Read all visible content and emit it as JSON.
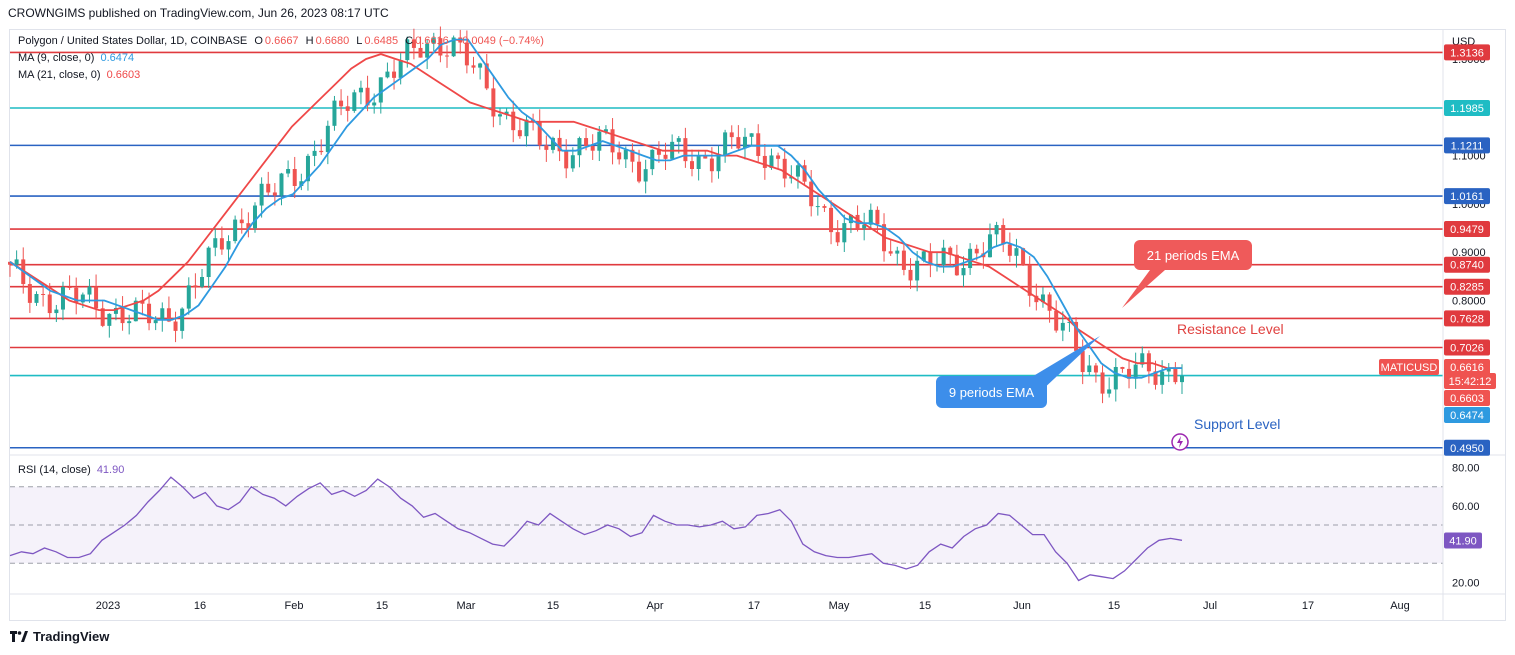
{
  "header": {
    "publisher_line": "CROWNGIMS published on TradingView.com, Jun 26, 2023 08:17 UTC"
  },
  "legend": {
    "symbol": "Polygon / United States Dollar, 1D, COINBASE",
    "open_label": "O",
    "open": "0.6667",
    "high_label": "H",
    "high": "0.6680",
    "low_label": "L",
    "low": "0.6485",
    "close_label": "C",
    "close": "0.6616",
    "change": "−0.0049 (−0.74%)",
    "ma9_label": "MA (9, close, 0)",
    "ma9_value": "0.6474",
    "ma21_label": "MA (21, close, 0)",
    "ma21_value": "0.6603",
    "rsi_label": "RSI (14, close)",
    "rsi_value": "41.90"
  },
  "annotations": {
    "ema21_callout": "21 periods EMA",
    "ema9_callout": "9 periods EMA",
    "resistance": "Resistance Level",
    "support": "Support Level"
  },
  "footer": {
    "brand": "TradingView"
  },
  "colors": {
    "up": "#26a69a",
    "down": "#ef5350",
    "ma9": "#2e9ae0",
    "ma21": "#ef4848",
    "red_line": "#e03a3e",
    "blue_line": "#2a63c2",
    "cyan_line": "#1fbcc4",
    "rsi": "#7e57c2",
    "callout_red": "#ef5a5a",
    "callout_blue": "#3d8eea"
  },
  "chart_data": [
    {
      "type": "candlestick",
      "symbol": "MATICUSD",
      "currency": "USD",
      "interval": "1D",
      "x_ticks": [
        "2023",
        "16",
        "Feb",
        "15",
        "Mar",
        "15",
        "Apr",
        "17",
        "May",
        "15",
        "Jun",
        "15",
        "Jul",
        "17",
        "Aug"
      ],
      "y_ticks": [
        "1.3000",
        "1.2000",
        "1.1000",
        "1.0000",
        "0.9000",
        "0.8000"
      ],
      "ylim": [
        0.48,
        1.36
      ],
      "horizontal_levels": [
        {
          "value": 1.3136,
          "label": "1.3136",
          "color": "#e03a3e"
        },
        {
          "value": 1.1985,
          "label": "1.1985",
          "color": "#1fbcc4"
        },
        {
          "value": 1.1211,
          "label": "1.1211",
          "color": "#2a63c2"
        },
        {
          "value": 1.0161,
          "label": "1.0161",
          "color": "#2a63c2"
        },
        {
          "value": 0.9479,
          "label": "0.9479",
          "color": "#e03a3e"
        },
        {
          "value": 0.874,
          "label": "0.8740",
          "color": "#e03a3e"
        },
        {
          "value": 0.8285,
          "label": "0.8285",
          "color": "#e03a3e"
        },
        {
          "value": 0.7628,
          "label": "0.7628",
          "color": "#e03a3e"
        },
        {
          "value": 0.7026,
          "label": "0.7026",
          "color": "#e03a3e"
        },
        {
          "value": 0.6444,
          "label": "0.6444",
          "color": "#1fbcc4"
        },
        {
          "value": 0.495,
          "label": "0.4950",
          "color": "#2a63c2"
        }
      ],
      "price_tags": [
        {
          "label": "MATICUSD",
          "value": 0.6616,
          "color": "#ef5350"
        },
        {
          "label": "0.6616",
          "value": 0.6616,
          "color": "#ef5350"
        },
        {
          "label": "15:42:12",
          "value": 0.6616,
          "color": "#ef5350"
        },
        {
          "label": "0.6603",
          "value": 0.6603,
          "color": "#ef5350"
        },
        {
          "label": "0.6474",
          "value": 0.6474,
          "color": "#2e9ae0"
        }
      ],
      "ma9": [
        0.88,
        0.86,
        0.84,
        0.82,
        0.81,
        0.8,
        0.8,
        0.8,
        0.79,
        0.78,
        0.77,
        0.76,
        0.76,
        0.77,
        0.79,
        0.83,
        0.87,
        0.92,
        0.96,
        0.99,
        1.01,
        1.02,
        1.05,
        1.08,
        1.12,
        1.16,
        1.19,
        1.22,
        1.24,
        1.26,
        1.28,
        1.3,
        1.33,
        1.34,
        1.34,
        1.3,
        1.26,
        1.22,
        1.19,
        1.17,
        1.14,
        1.11,
        1.11,
        1.12,
        1.13,
        1.12,
        1.11,
        1.1,
        1.09,
        1.09,
        1.1,
        1.1,
        1.1,
        1.1,
        1.11,
        1.12,
        1.12,
        1.12,
        1.1,
        1.07,
        1.03,
        1.0,
        0.97,
        0.96,
        0.96,
        0.95,
        0.93,
        0.9,
        0.88,
        0.87,
        0.87,
        0.88,
        0.89,
        0.91,
        0.92,
        0.91,
        0.89,
        0.85,
        0.8,
        0.75,
        0.71,
        0.67,
        0.65,
        0.64,
        0.64,
        0.65,
        0.66,
        0.66
      ],
      "ma21": [
        0.88,
        0.86,
        0.84,
        0.82,
        0.8,
        0.79,
        0.78,
        0.78,
        0.79,
        0.8,
        0.82,
        0.85,
        0.88,
        0.92,
        0.96,
        1.0,
        1.04,
        1.08,
        1.12,
        1.16,
        1.19,
        1.22,
        1.25,
        1.28,
        1.3,
        1.31,
        1.3,
        1.29,
        1.27,
        1.25,
        1.23,
        1.21,
        1.2,
        1.19,
        1.18,
        1.17,
        1.17,
        1.17,
        1.17,
        1.16,
        1.15,
        1.14,
        1.13,
        1.12,
        1.11,
        1.11,
        1.11,
        1.11,
        1.1,
        1.1,
        1.09,
        1.08,
        1.07,
        1.05,
        1.03,
        1.01,
        0.99,
        0.97,
        0.95,
        0.93,
        0.92,
        0.91,
        0.9,
        0.9,
        0.89,
        0.88,
        0.87,
        0.85,
        0.83,
        0.81,
        0.79,
        0.77,
        0.74,
        0.72,
        0.7,
        0.68,
        0.67,
        0.67,
        0.66,
        0.66
      ]
    },
    {
      "type": "line",
      "name": "RSI (14, close)",
      "y_ticks": [
        "80.00",
        "60.00",
        "20.00"
      ],
      "ylim": [
        15,
        85
      ],
      "bands": [
        70,
        50,
        30
      ],
      "last_value": 41.9,
      "values": [
        34,
        36,
        35,
        38,
        36,
        33,
        33,
        35,
        42,
        46,
        50,
        55,
        62,
        68,
        75,
        70,
        64,
        67,
        60,
        58,
        62,
        70,
        66,
        64,
        60,
        65,
        69,
        72,
        66,
        68,
        65,
        68,
        74,
        70,
        64,
        60,
        54,
        56,
        52,
        48,
        46,
        43,
        40,
        39,
        45,
        52,
        50,
        56,
        52,
        48,
        45,
        47,
        50,
        48,
        44,
        46,
        55,
        52,
        50,
        50,
        49,
        50,
        52,
        48,
        49,
        55,
        56,
        58,
        52,
        40,
        36,
        34,
        33,
        33,
        34,
        35,
        30,
        29,
        27,
        29,
        36,
        40,
        38,
        44,
        48,
        50,
        56,
        55,
        50,
        45,
        45,
        36,
        30,
        21,
        24,
        23,
        22,
        26,
        32,
        38,
        42,
        43,
        42
      ]
    }
  ]
}
